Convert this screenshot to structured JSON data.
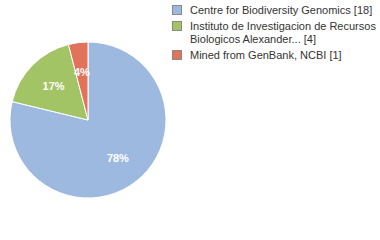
{
  "chart_data": {
    "type": "pie",
    "categories": [
      "Centre for Biodiversity Genomics [18]",
      "Instituto de Investigacion de Recursos Biologicos Alexander... [4]",
      "Mined from GenBank, NCBI [1]"
    ],
    "values": [
      78,
      17,
      4
    ],
    "value_labels": [
      "78%",
      "17%",
      "4%"
    ],
    "colors": [
      "#9db9e0",
      "#a3c464",
      "#e0735a"
    ],
    "data_labels": true,
    "legend": "top-right"
  }
}
